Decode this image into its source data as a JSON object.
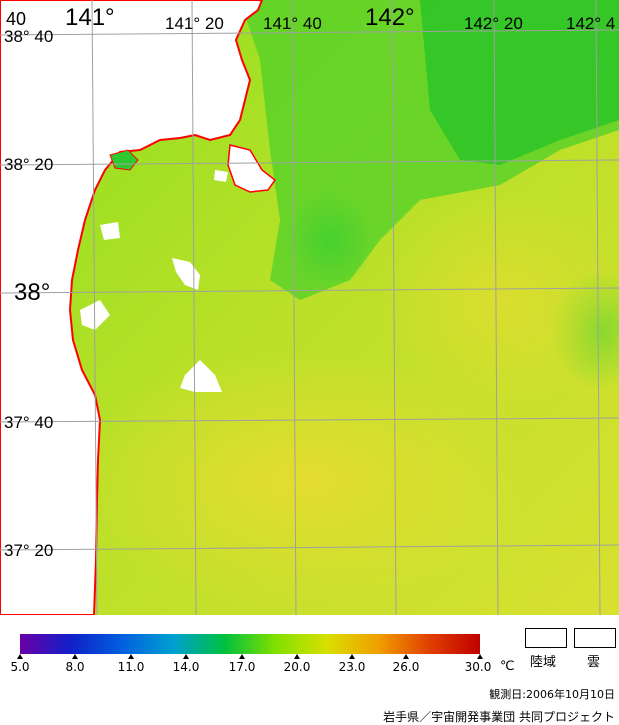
{
  "map": {
    "top_labels": [
      "40",
      "141°",
      "141° 20",
      "141° 40",
      "142°",
      "142° 20",
      "142° 4"
    ],
    "left_labels": [
      "38° 40",
      "38° 20",
      "38°",
      "37° 40",
      "37° 20"
    ],
    "colors": {
      "land": "#ffffff",
      "coastline": "#ff0000",
      "grid": "#a0a0a0",
      "cloud": "#ffffff"
    }
  },
  "legend": {
    "ticks": [
      "5.0",
      "8.0",
      "11.0",
      "14.0",
      "17.0",
      "20.0",
      "23.0",
      "26.0",
      "30.0"
    ],
    "unit": "℃",
    "colors": [
      "#6a00a8",
      "#1020c8",
      "#0060e0",
      "#00a0d0",
      "#00c040",
      "#80e000",
      "#d8e000",
      "#f0a000",
      "#e04000",
      "#c00000"
    ]
  },
  "key": {
    "land_label": "陸域",
    "cloud_label": "雲"
  },
  "footer": {
    "observation_date": "観測日:2006年10月10日",
    "credit": "岩手県／宇宙開発事業団 共同プロジェクト"
  }
}
